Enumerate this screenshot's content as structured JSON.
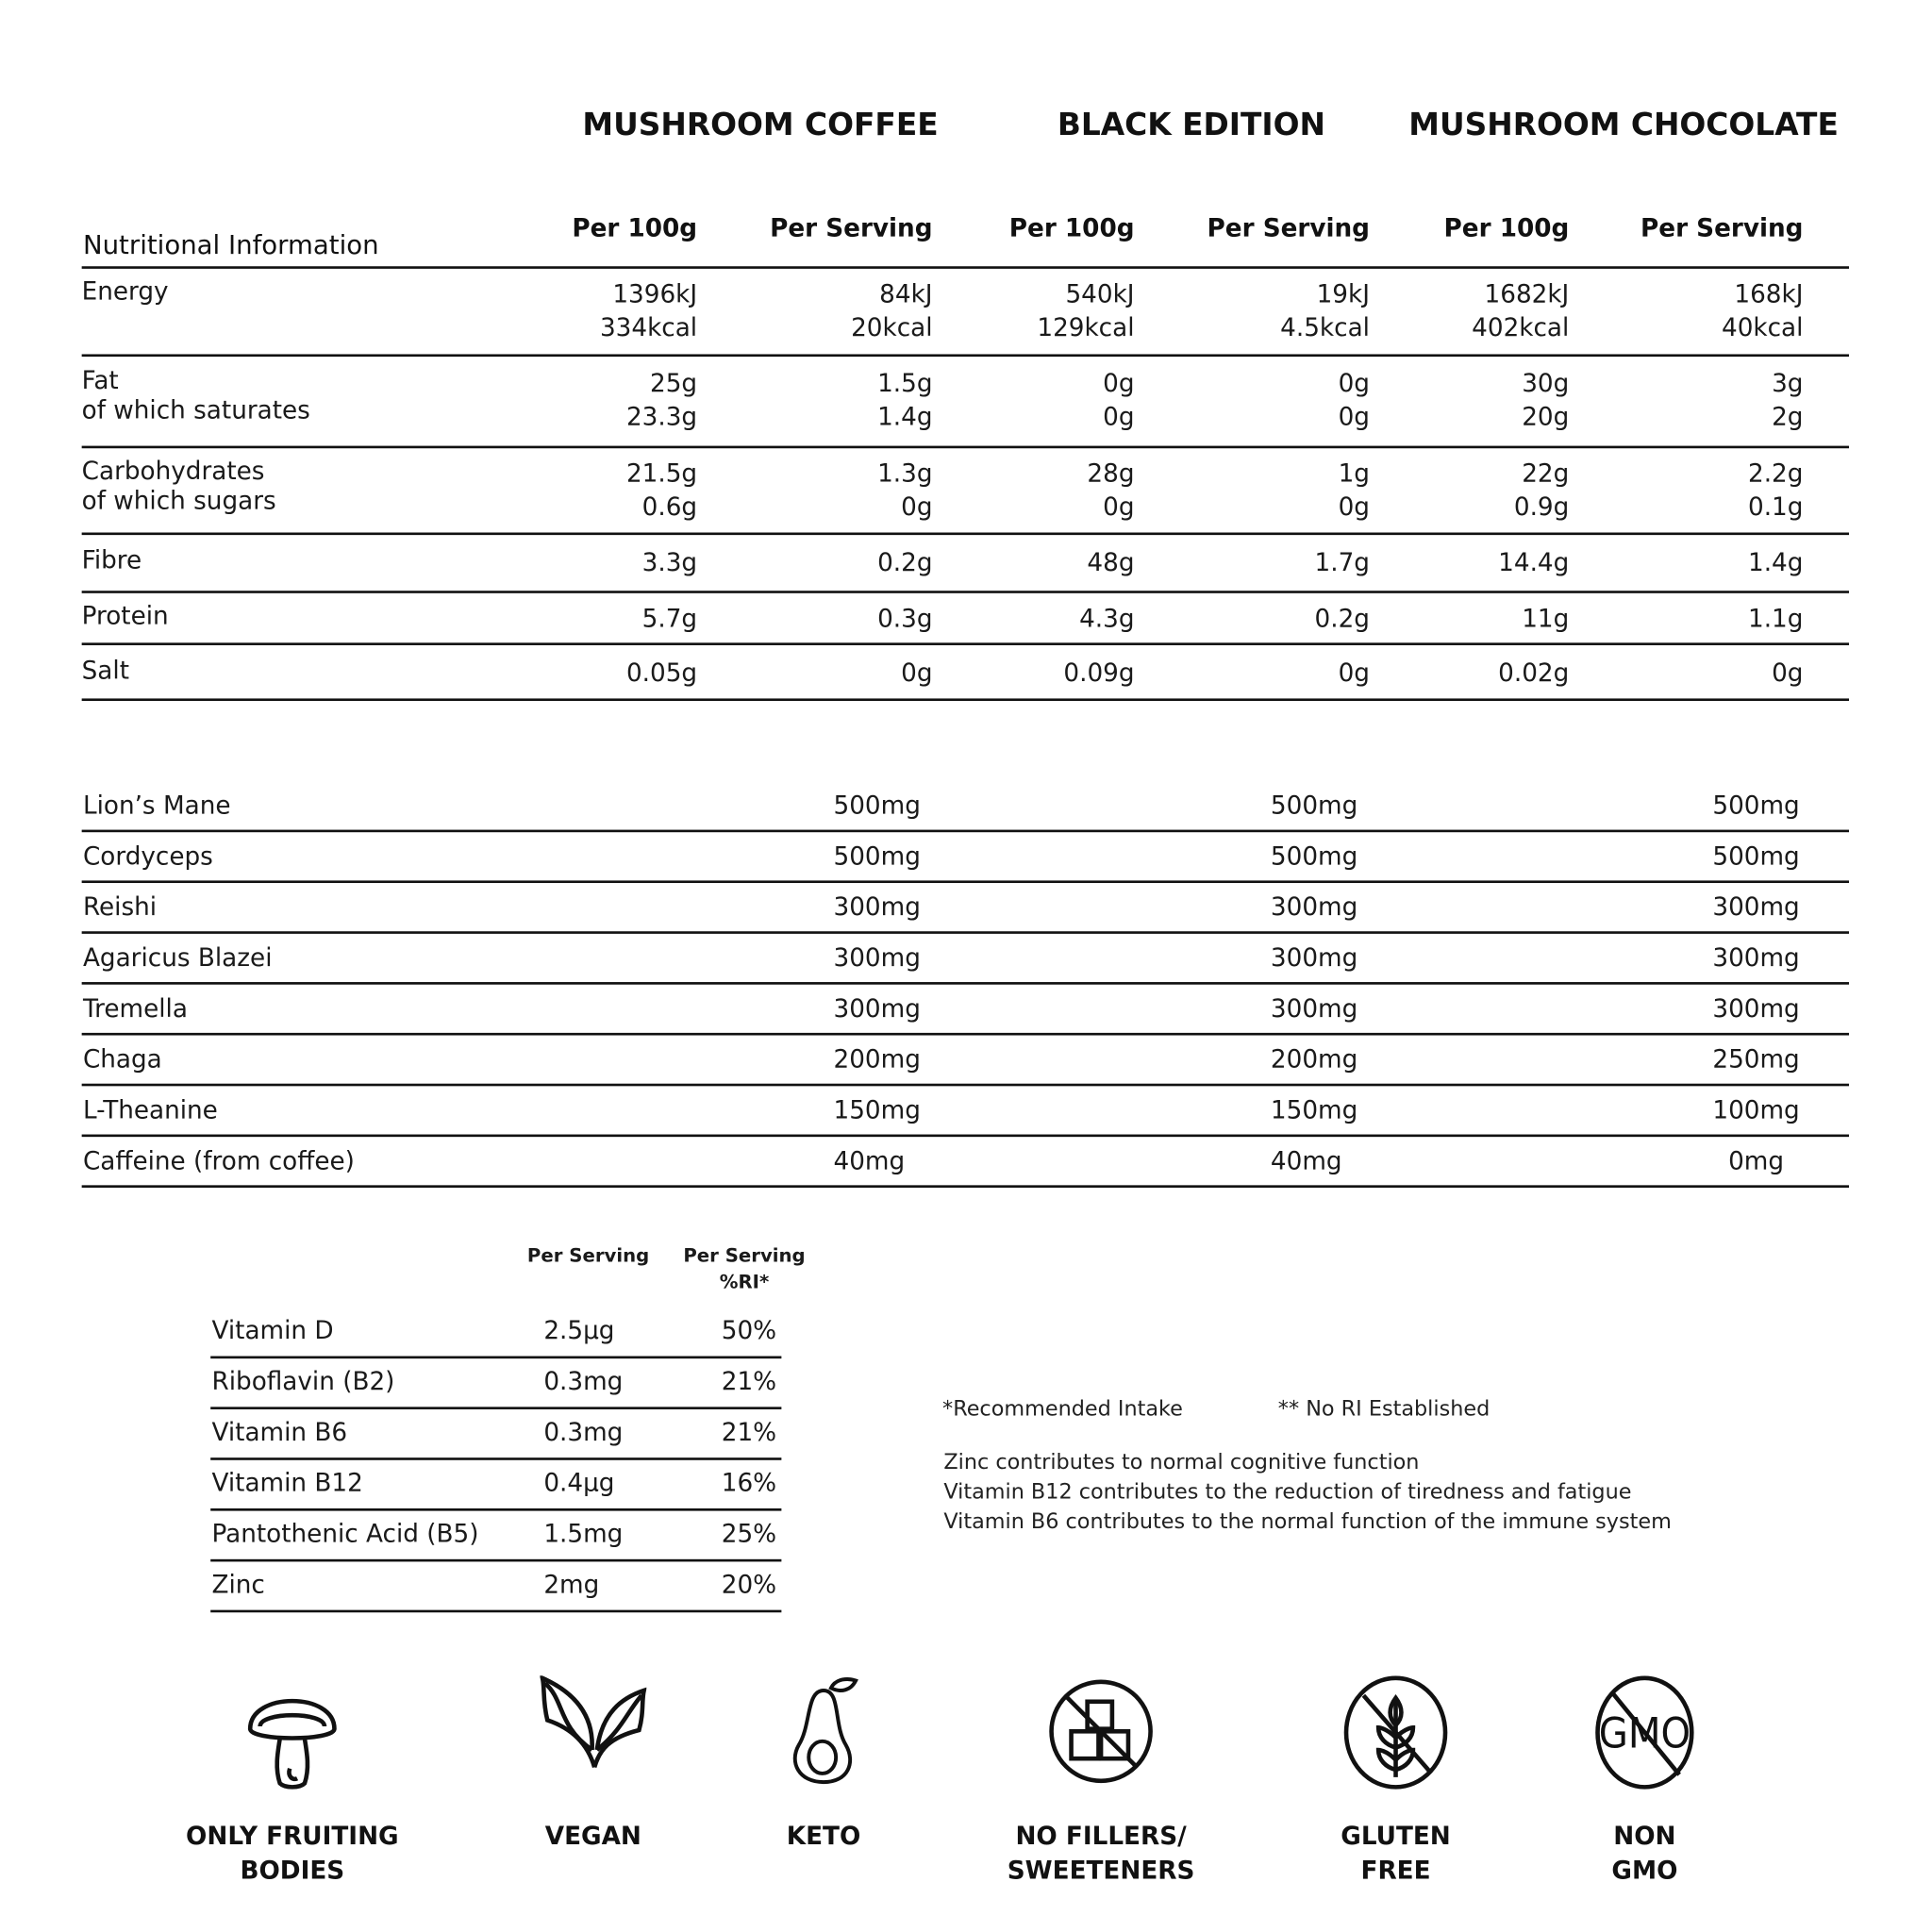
{
  "products": [
    "MUSHROOM COFFEE",
    "BLACK EDITION",
    "MUSHROOM CHOCOLATE"
  ],
  "nutrition": {
    "title": "Nutritional Information",
    "columns": [
      "Per 100g",
      "Per Serving",
      "Per 100g",
      "Per Serving",
      "Per 100g",
      "Per Serving"
    ],
    "rows": [
      {
        "label": [
          "Energy"
        ],
        "values": [
          [
            "1396kJ",
            "334kcal"
          ],
          [
            "84kJ",
            "20kcal"
          ],
          [
            "540kJ",
            "129kcal"
          ],
          [
            "19kJ",
            "4.5kcal"
          ],
          [
            "1682kJ",
            "402kcal"
          ],
          [
            "168kJ",
            "40kcal"
          ]
        ]
      },
      {
        "label": [
          "Fat",
          "of which saturates"
        ],
        "values": [
          [
            "25g",
            "23.3g"
          ],
          [
            "1.5g",
            "1.4g"
          ],
          [
            "0g",
            "0g"
          ],
          [
            "0g",
            "0g"
          ],
          [
            "30g",
            "20g"
          ],
          [
            "3g",
            "2g"
          ]
        ]
      },
      {
        "label": [
          "Carbohydrates",
          "of which sugars"
        ],
        "values": [
          [
            "21.5g",
            "0.6g"
          ],
          [
            "1.3g",
            "0g"
          ],
          [
            "28g",
            "0g"
          ],
          [
            "1g",
            "0g"
          ],
          [
            "22g",
            "0.9g"
          ],
          [
            "2.2g",
            "0.1g"
          ]
        ]
      },
      {
        "label": [
          "Fibre"
        ],
        "values": [
          [
            "3.3g"
          ],
          [
            "0.2g"
          ],
          [
            "48g"
          ],
          [
            "1.7g"
          ],
          [
            "14.4g"
          ],
          [
            "1.4g"
          ]
        ]
      },
      {
        "label": [
          "Protein"
        ],
        "values": [
          [
            "5.7g"
          ],
          [
            "0.3g"
          ],
          [
            "4.3g"
          ],
          [
            "0.2g"
          ],
          [
            "11g"
          ],
          [
            "1.1g"
          ]
        ]
      },
      {
        "label": [
          "Salt"
        ],
        "values": [
          [
            "0.05g"
          ],
          [
            "0g"
          ],
          [
            "0.09g"
          ],
          [
            "0g"
          ],
          [
            "0.02g"
          ],
          [
            "0g"
          ]
        ]
      }
    ]
  },
  "mushrooms": [
    {
      "name": "Lion’s Mane",
      "values": [
        "500mg",
        "500mg",
        "500mg"
      ]
    },
    {
      "name": "Cordyceps",
      "values": [
        "500mg",
        "500mg",
        "500mg"
      ]
    },
    {
      "name": "Reishi",
      "values": [
        "300mg",
        "300mg",
        "300mg"
      ]
    },
    {
      "name": "Agaricus Blazei",
      "values": [
        "300mg",
        "300mg",
        "300mg"
      ]
    },
    {
      "name": "Tremella",
      "values": [
        "300mg",
        "300mg",
        "300mg"
      ]
    },
    {
      "name": "Chaga",
      "values": [
        "200mg",
        "200mg",
        "250mg"
      ]
    },
    {
      "name": "L-Theanine",
      "values": [
        "150mg",
        "150mg",
        "100mg"
      ]
    },
    {
      "name": "Caffeine (from coffee)",
      "values": [
        "40mg",
        "40mg",
        "0mg"
      ]
    }
  ],
  "vitamins": {
    "headers": [
      "Per Serving",
      "Per Serving",
      "%RI*"
    ],
    "rows": [
      {
        "name": "Vitamin D",
        "amount": "2.5µg",
        "ri": "50%"
      },
      {
        "name": "Riboflavin (B2)",
        "amount": "0.3mg",
        "ri": "21%"
      },
      {
        "name": "Vitamin B6",
        "amount": "0.3mg",
        "ri": "21%"
      },
      {
        "name": "Vitamin B12",
        "amount": "0.4µg",
        "ri": "16%"
      },
      {
        "name": "Pantothenic Acid (B5)",
        "amount": "1.5mg",
        "ri": "25%"
      },
      {
        "name": "Zinc",
        "amount": "2mg",
        "ri": "20%"
      }
    ]
  },
  "notes": {
    "ri": "*Recommended Intake",
    "no_ri": "** No RI Established",
    "claims": [
      "Zinc contributes to normal cognitive function",
      "Vitamin B12 contributes to the reduction of tiredness and fatigue",
      "Vitamin B6 contributes to the normal function of the immune system"
    ]
  },
  "badges": [
    {
      "icon": "mushroom-icon",
      "lines": [
        "ONLY FRUITING",
        "BODIES"
      ]
    },
    {
      "icon": "leaves-icon",
      "lines": [
        "VEGAN"
      ]
    },
    {
      "icon": "avocado-icon",
      "lines": [
        "KETO"
      ]
    },
    {
      "icon": "no-sugar-cubes-icon",
      "lines": [
        "NO FILLERS/",
        "SWEETENERS"
      ]
    },
    {
      "icon": "no-wheat-icon",
      "lines": [
        "GLUTEN",
        "FREE"
      ]
    },
    {
      "icon": "no-gmo-icon",
      "lines": [
        "NON",
        "GMO"
      ]
    }
  ]
}
